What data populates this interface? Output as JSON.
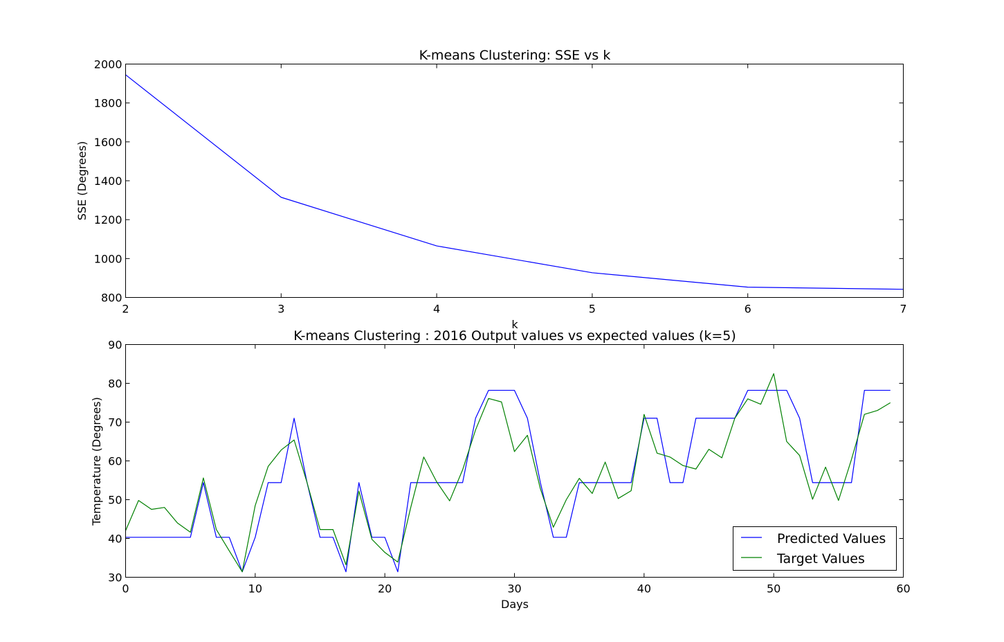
{
  "chart_data": [
    {
      "type": "line",
      "title": "K-means Clustering: SSE vs k",
      "xlabel": "k",
      "ylabel": "SSE (Degrees)",
      "xlim": [
        2,
        7
      ],
      "ylim": [
        800,
        2000
      ],
      "xticks": [
        2,
        3,
        4,
        5,
        6,
        7
      ],
      "yticks": [
        800,
        1000,
        1200,
        1400,
        1600,
        1800,
        2000
      ],
      "grid": false,
      "series": [
        {
          "color": "#0000ff",
          "x": [
            2,
            3,
            4,
            5,
            6,
            7
          ],
          "values": [
            1945,
            1315,
            1065,
            927,
            853,
            842
          ]
        }
      ]
    },
    {
      "type": "line",
      "title": "K-means Clustering : 2016 Output values vs expected values (k=5)",
      "xlabel": "Days",
      "ylabel": "Temperature (Degrees)",
      "xlim": [
        0,
        60
      ],
      "ylim": [
        30,
        90
      ],
      "xticks": [
        0,
        10,
        20,
        30,
        40,
        50,
        60
      ],
      "yticks": [
        30,
        40,
        50,
        60,
        70,
        80,
        90
      ],
      "grid": false,
      "legend": "lower-right",
      "series": [
        {
          "name": "Predicted Values",
          "color": "#0000ff",
          "values": [
            40.3,
            40.3,
            40.3,
            40.3,
            40.3,
            40.3,
            54.4,
            40.3,
            40.3,
            31.4,
            40.3,
            54.4,
            54.4,
            71,
            54.4,
            40.3,
            40.3,
            31.4,
            54.4,
            40.3,
            40.3,
            31.4,
            54.4,
            54.4,
            54.4,
            54.4,
            54.4,
            71,
            78.2,
            78.2,
            78.2,
            71,
            54.4,
            40.3,
            40.3,
            54.4,
            54.4,
            54.4,
            54.4,
            54.4,
            71,
            71,
            54.4,
            54.4,
            71,
            71,
            71,
            71,
            78.2,
            78.2,
            78.2,
            78.2,
            71,
            54.4,
            54.4,
            54.4,
            54.4,
            78.2,
            78.2,
            78.2
          ]
        },
        {
          "name": "Target Values",
          "color": "#008000",
          "values": [
            42,
            49.8,
            47.5,
            48,
            44,
            41.6,
            55.6,
            42.3,
            36.8,
            31.4,
            48.5,
            58.6,
            62.8,
            65.4,
            54.4,
            42.3,
            42.3,
            33.2,
            52.2,
            39.8,
            36.4,
            33.9,
            48,
            61,
            54.6,
            49.7,
            57.7,
            68,
            76.1,
            75.2,
            62.4,
            66.6,
            52.8,
            42.9,
            50,
            55.5,
            51.6,
            59.7,
            50.3,
            52.3,
            72,
            62,
            61,
            58.8,
            57.9,
            63,
            60.8,
            71,
            76,
            74.6,
            82.5,
            65,
            61.4,
            50.1,
            58.4,
            49.8,
            60.4,
            72,
            73,
            75
          ]
        }
      ]
    }
  ]
}
